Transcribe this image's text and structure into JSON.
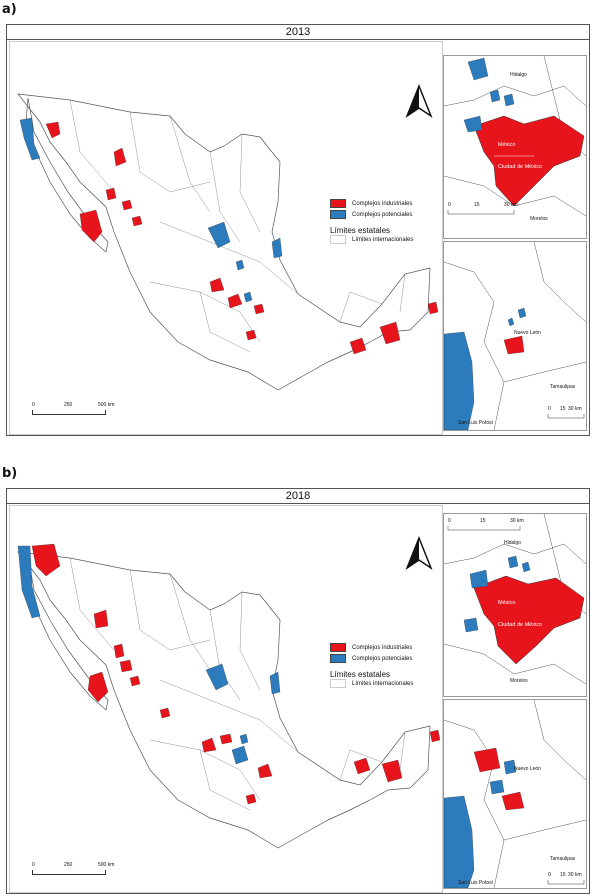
{
  "panels": [
    {
      "letter": "a)",
      "year": "2013",
      "legend": {
        "industrial": "Complejos industriales",
        "potential": "Complejos potenciales",
        "state_limits": "Límites estatales",
        "intl_limits": "Límites internacionales"
      },
      "scale": {
        "t0": "0",
        "t1": "250",
        "t2": "500 km"
      },
      "inset_top": {
        "labels": [
          "Hidalgo",
          "México",
          "Ciudad de México",
          "Morelos"
        ],
        "scale": [
          "0",
          "15",
          "30 km"
        ]
      },
      "inset_bottom": {
        "labels": [
          "Nuevo León",
          "Tamaulipas",
          "San Luis Potosí"
        ],
        "scale": [
          "0",
          "15",
          "30 km"
        ]
      }
    },
    {
      "letter": "b)",
      "year": "2018",
      "legend": {
        "industrial": "Complejos industriales",
        "potential": "Complejos potenciales",
        "state_limits": "Límites estatales",
        "intl_limits": "Límites internacionales"
      },
      "scale": {
        "t0": "0",
        "t1": "250",
        "t2": "500 km"
      },
      "inset_top": {
        "labels": [
          "Hidalgo",
          "México",
          "Ciudad de México",
          "Morelos"
        ],
        "scale": [
          "0",
          "15",
          "30 km"
        ]
      },
      "inset_bottom": {
        "labels": [
          "Nuevo León",
          "Tamaulipas",
          "San Luis Potosí"
        ],
        "scale": [
          "0",
          "15",
          "30 km"
        ]
      }
    }
  ],
  "colors": {
    "industrial": "#e8141b",
    "potential": "#2b7bbd",
    "border": "#444444"
  }
}
